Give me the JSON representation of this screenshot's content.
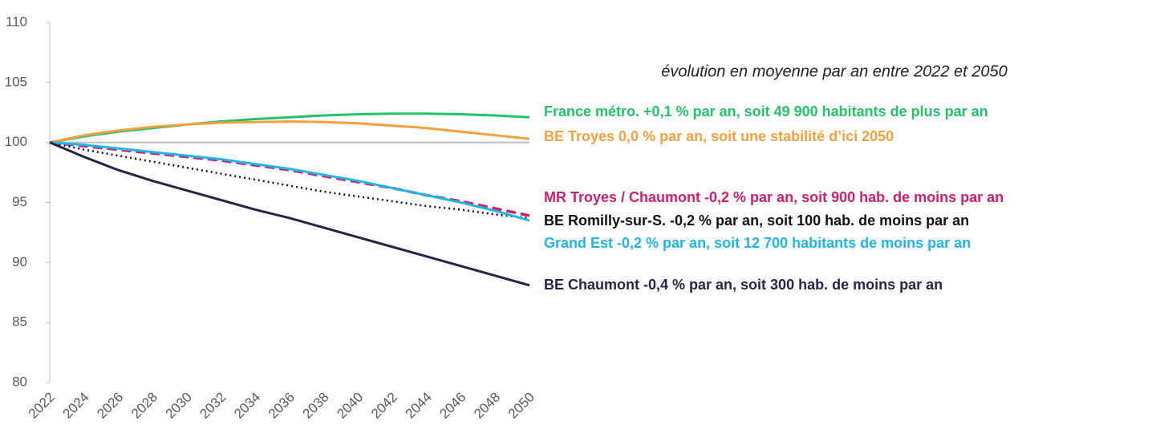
{
  "chart_data": {
    "type": "line",
    "annotation": "évolution en moyenne par an entre 2022 et 2050",
    "x": [
      2022,
      2024,
      2026,
      2028,
      2030,
      2032,
      2034,
      2036,
      2038,
      2040,
      2042,
      2044,
      2046,
      2048,
      2050
    ],
    "xlim": [
      2022,
      2050
    ],
    "xticks": [
      2022,
      2024,
      2026,
      2028,
      2030,
      2032,
      2034,
      2036,
      2038,
      2040,
      2042,
      2044,
      2046,
      2048,
      2050
    ],
    "ylim": [
      80,
      110
    ],
    "yticks": [
      80,
      85,
      90,
      95,
      100,
      105,
      110
    ],
    "reference_line": 100,
    "series": [
      {
        "name": "France métro. +0,1 % par an, soit 49 900 habitants de plus par an",
        "color": "#22c36b",
        "style": "solid",
        "values": [
          100,
          100.5,
          100.9,
          101.2,
          101.5,
          101.75,
          101.95,
          102.1,
          102.25,
          102.35,
          102.4,
          102.4,
          102.35,
          102.25,
          102.1
        ]
      },
      {
        "name": "BE Troyes 0,0 % par an, soit une stabilité d’ici 2050",
        "color": "#f5a03c",
        "style": "solid",
        "values": [
          100,
          100.6,
          101.0,
          101.3,
          101.5,
          101.65,
          101.7,
          101.75,
          101.7,
          101.6,
          101.4,
          101.2,
          100.9,
          100.6,
          100.3
        ]
      },
      {
        "name": "MR Troyes / Chaumont -0,2 % par an, soit 900 hab. de moins par an",
        "color": "#d01e6e",
        "style": "dashed",
        "values": [
          100,
          99.7,
          99.4,
          99.1,
          98.8,
          98.5,
          98.1,
          97.7,
          97.2,
          96.7,
          96.2,
          95.6,
          95.1,
          94.5,
          93.9
        ]
      },
      {
        "name": "BE Romilly-sur-S. -0,2 % par an, soit 100 hab. de moins par an",
        "color": "#111111",
        "style": "dotted",
        "values": [
          100,
          99.4,
          98.9,
          98.4,
          97.9,
          97.4,
          96.9,
          96.4,
          95.9,
          95.5,
          95.1,
          94.7,
          94.4,
          94.0,
          93.7
        ]
      },
      {
        "name": "Grand Est -0,2 % par an, soit 12 700 habitants de moins par an",
        "color": "#1fb5e6",
        "style": "solid",
        "values": [
          100,
          99.8,
          99.5,
          99.2,
          98.9,
          98.6,
          98.2,
          97.8,
          97.3,
          96.8,
          96.2,
          95.6,
          95.0,
          94.3,
          93.5
        ]
      },
      {
        "name": "BE Chaumont -0,4 % par an, soit 300 hab. de moins par an",
        "color": "#262447",
        "style": "solid",
        "values": [
          100,
          98.8,
          97.7,
          96.8,
          96.0,
          95.2,
          94.4,
          93.7,
          92.9,
          92.1,
          91.3,
          90.5,
          89.7,
          88.9,
          88.1
        ]
      }
    ]
  }
}
